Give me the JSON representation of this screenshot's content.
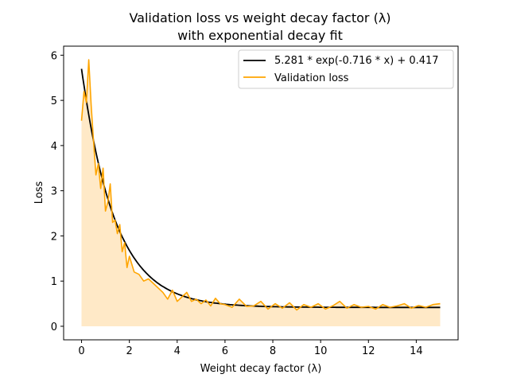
{
  "chart_data": {
    "type": "line",
    "title_line1": "Validation loss vs weight decay factor (λ)",
    "title_line2": "with exponential decay fit",
    "xlabel": "Weight decay factor (λ)",
    "ylabel": "Loss",
    "xlim": [
      -0.75,
      15.75
    ],
    "ylim": [
      -0.3,
      6.2
    ],
    "xticks": [
      0,
      2,
      4,
      6,
      8,
      10,
      12,
      14
    ],
    "yticks": [
      0,
      1,
      2,
      3,
      4,
      5,
      6
    ],
    "grid": false,
    "legend_position": "top-right",
    "fit": {
      "name": "5.281 * exp(-0.716 * x) + 0.417",
      "a": 5.281,
      "b": -0.716,
      "c": 0.417,
      "color": "#000000",
      "x_range": [
        0,
        15
      ]
    },
    "series": [
      {
        "name": "Validation loss",
        "color": "#FFA500",
        "fill_color": "#FFE9C7",
        "x": [
          0,
          0.1,
          0.2,
          0.3,
          0.4,
          0.5,
          0.6,
          0.7,
          0.8,
          0.9,
          1.0,
          1.1,
          1.2,
          1.3,
          1.4,
          1.5,
          1.6,
          1.7,
          1.8,
          1.9,
          2.0,
          2.2,
          2.4,
          2.6,
          2.8,
          3.0,
          3.2,
          3.4,
          3.6,
          3.8,
          4.0,
          4.2,
          4.4,
          4.6,
          4.8,
          5.0,
          5.2,
          5.4,
          5.6,
          5.8,
          6.0,
          6.3,
          6.6,
          6.9,
          7.2,
          7.5,
          7.8,
          8.1,
          8.4,
          8.7,
          9.0,
          9.3,
          9.6,
          9.9,
          10.2,
          10.5,
          10.8,
          11.1,
          11.4,
          11.7,
          12.0,
          12.3,
          12.6,
          12.9,
          13.2,
          13.5,
          13.8,
          14.1,
          14.4,
          14.7,
          15.0
        ],
        "y": [
          4.55,
          5.2,
          4.95,
          5.9,
          4.9,
          4.1,
          3.35,
          3.6,
          3.05,
          3.5,
          2.55,
          2.75,
          3.15,
          2.3,
          2.35,
          2.05,
          2.25,
          1.65,
          1.85,
          1.3,
          1.55,
          1.2,
          1.15,
          1.0,
          1.05,
          0.95,
          0.85,
          0.75,
          0.6,
          0.8,
          0.55,
          0.65,
          0.75,
          0.55,
          0.6,
          0.5,
          0.58,
          0.45,
          0.62,
          0.5,
          0.48,
          0.42,
          0.6,
          0.44,
          0.45,
          0.55,
          0.38,
          0.5,
          0.4,
          0.52,
          0.36,
          0.48,
          0.42,
          0.5,
          0.38,
          0.45,
          0.55,
          0.4,
          0.48,
          0.42,
          0.44,
          0.38,
          0.48,
          0.42,
          0.45,
          0.5,
          0.4,
          0.46,
          0.42,
          0.48,
          0.5
        ]
      }
    ]
  }
}
